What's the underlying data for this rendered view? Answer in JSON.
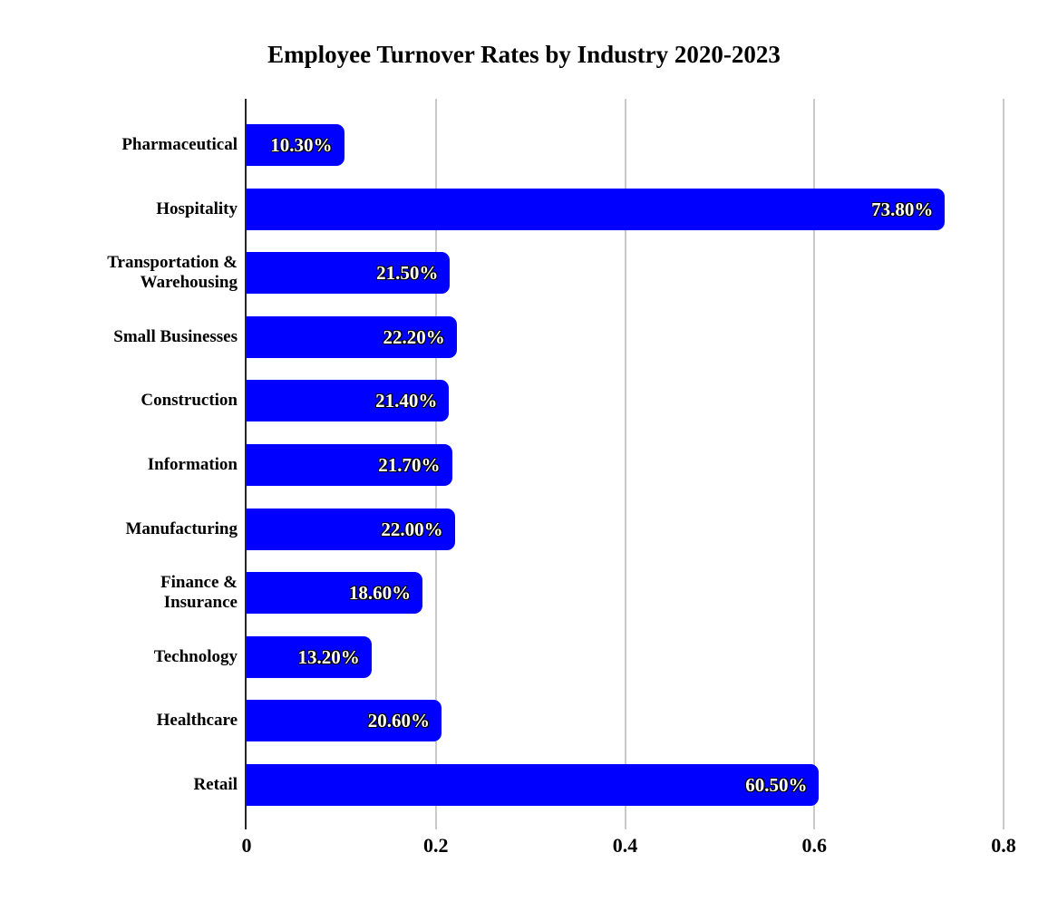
{
  "chart_data": {
    "type": "bar",
    "orientation": "horizontal",
    "title": "Employee Turnover Rates by Industry 2020-2023",
    "categories": [
      "Pharmaceutical",
      "Hospitality",
      "Transportation &\nWarehousing",
      "Small Businesses",
      "Construction",
      "Information",
      "Manufacturing",
      "Finance &\nInsurance",
      "Technology",
      "Healthcare",
      "Retail"
    ],
    "values": [
      0.103,
      0.738,
      0.215,
      0.222,
      0.214,
      0.217,
      0.22,
      0.186,
      0.132,
      0.206,
      0.605
    ],
    "value_labels": [
      "10.30%",
      "73.80%",
      "21.50%",
      "22.20%",
      "21.40%",
      "21.70%",
      "22.00%",
      "18.60%",
      "13.20%",
      "20.60%",
      "60.50%"
    ],
    "x_ticks": [
      0,
      0.2,
      0.4,
      0.6,
      0.8
    ],
    "x_tick_labels": [
      "0",
      "0.2",
      "0.4",
      "0.6",
      "0.8"
    ],
    "xlim": [
      0,
      0.822
    ],
    "grid": true,
    "legend": false,
    "bar_color": "#0000ff",
    "gridline_color": "#c9c9c9",
    "axis_color": "#262626",
    "value_label_color": "#ffffff",
    "text_color": "#000000"
  }
}
